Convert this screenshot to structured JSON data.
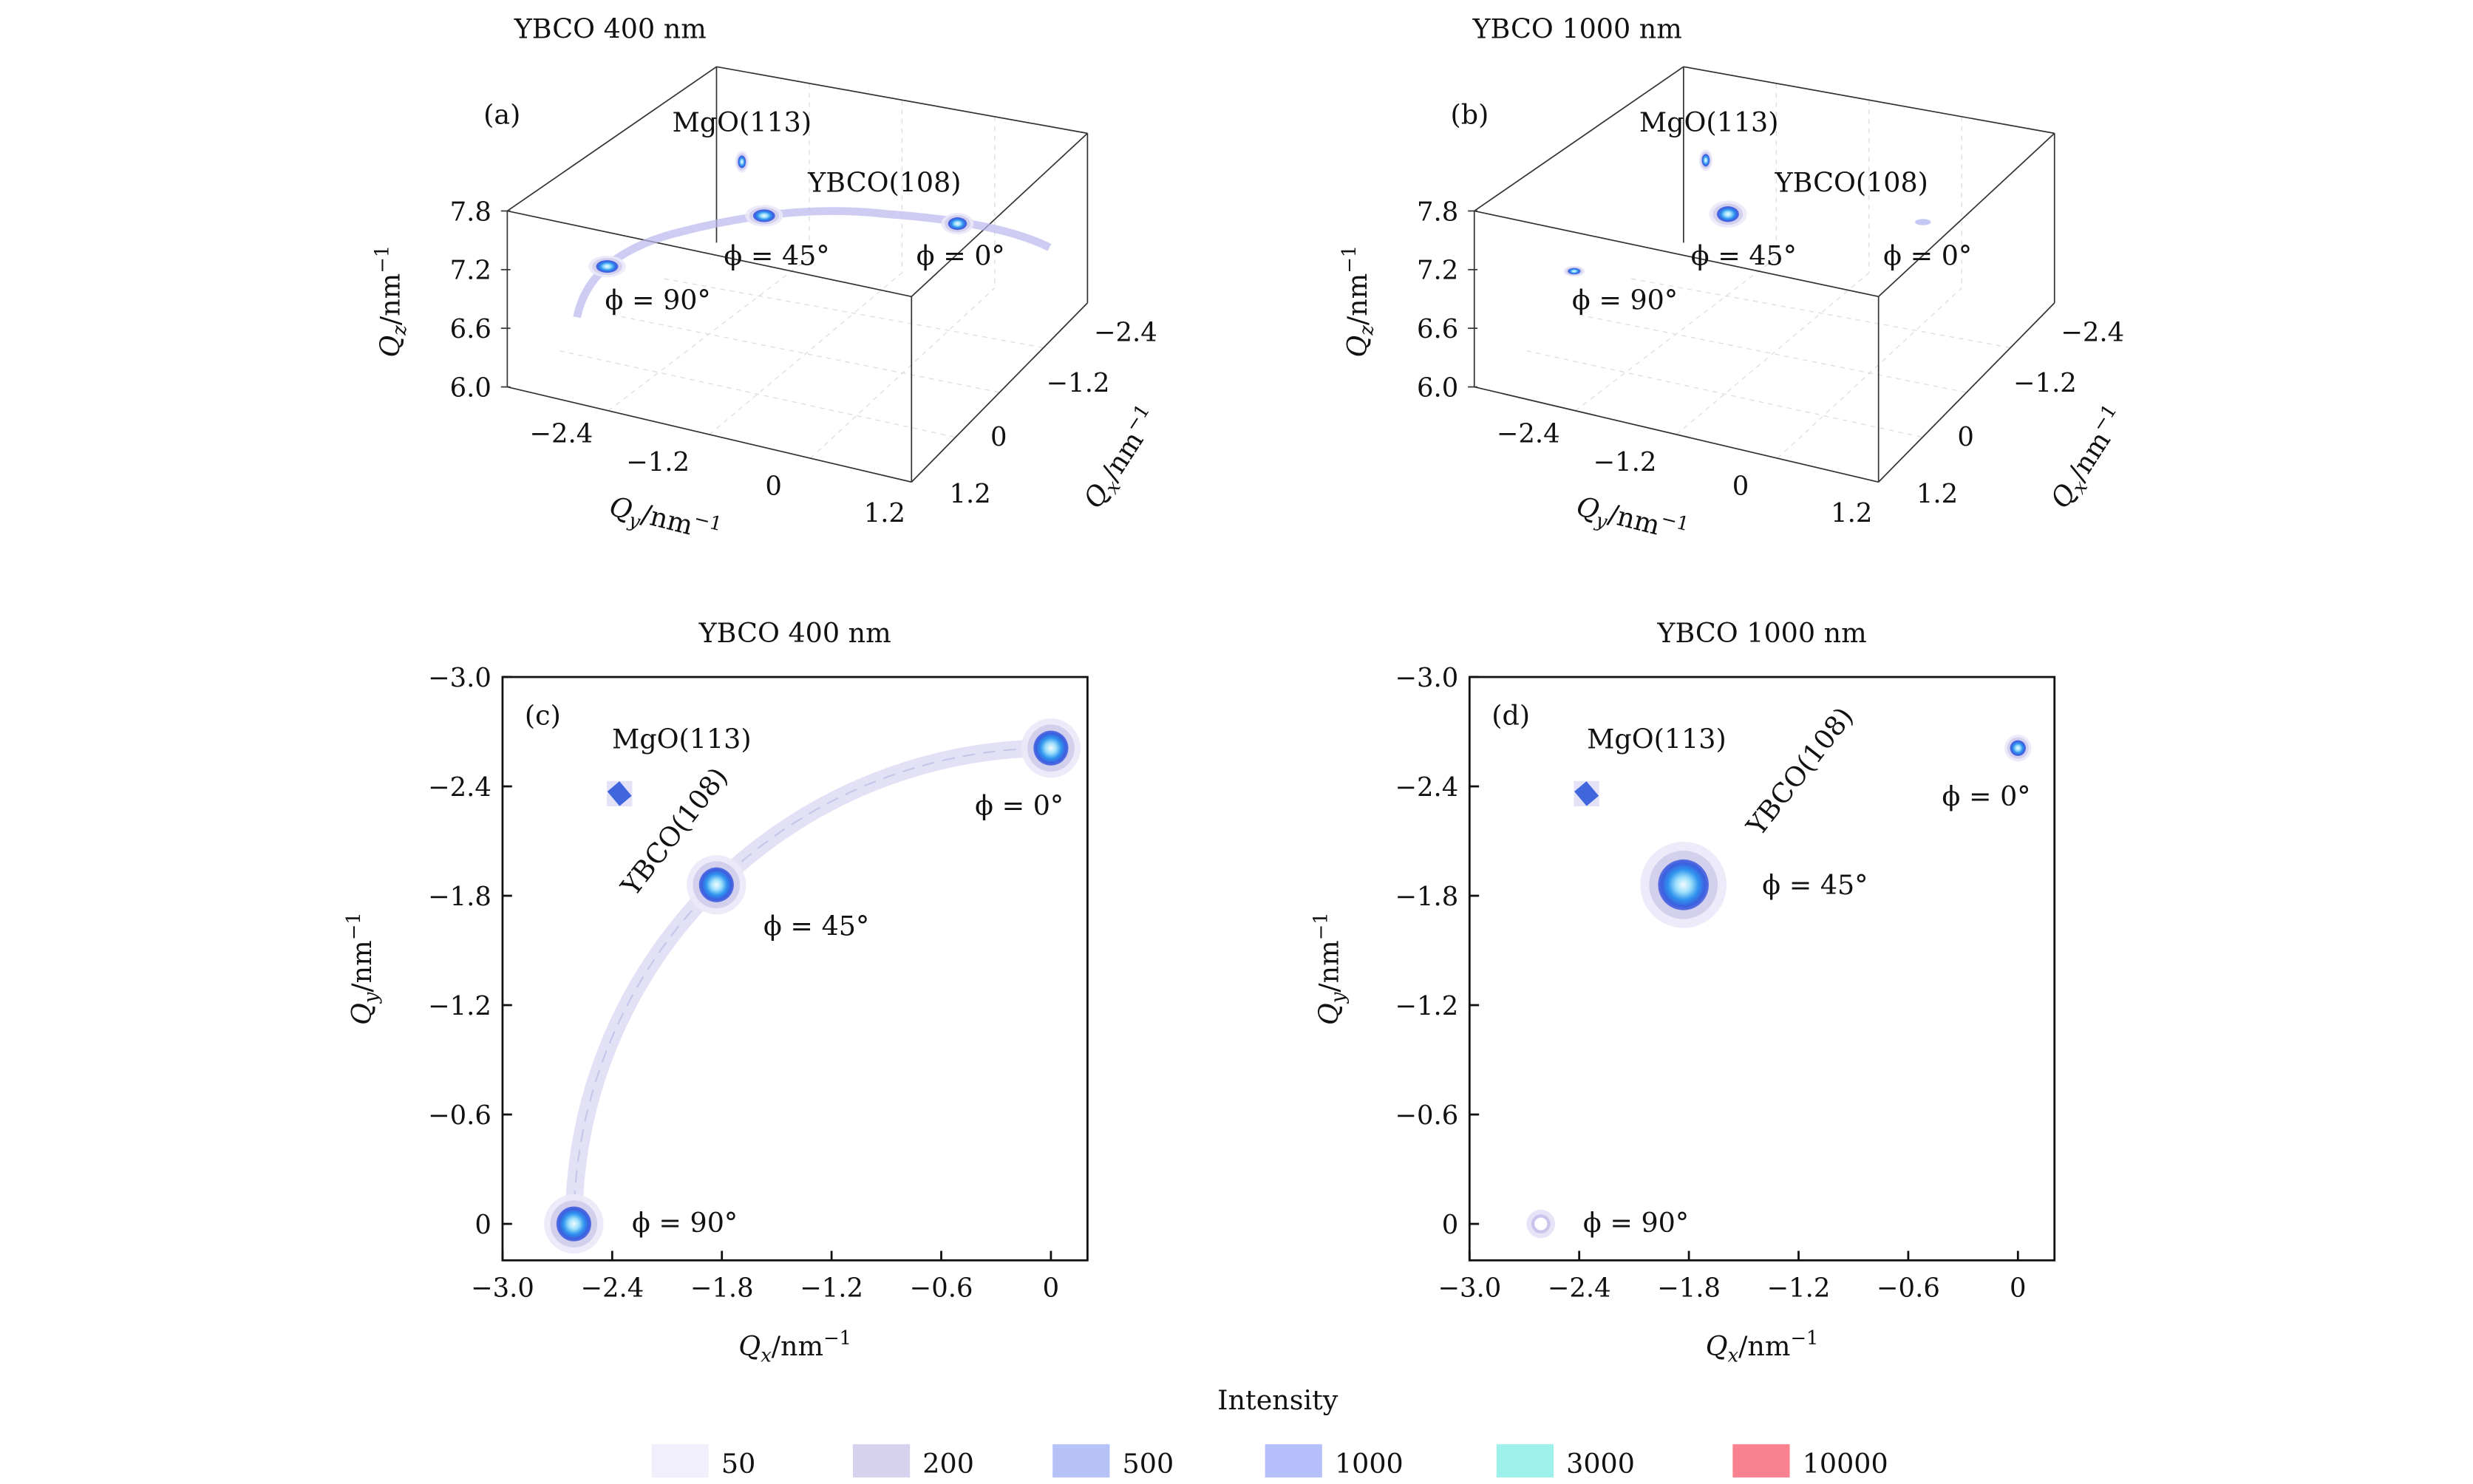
{
  "chart_data": [
    {
      "panel": "(a)",
      "type": "heatmap",
      "title": "YBCO 400 nm",
      "xlabel": {
        "sym": "Q",
        "sub": "y",
        "unit": "/nm",
        "sup": "−1"
      },
      "ylabel": {
        "sym": "Q",
        "sub": "x",
        "unit": "/nm",
        "sup": "−1"
      },
      "zlabel": {
        "sym": "Q",
        "sub": "z",
        "unit": "/nm",
        "sup": "−1"
      },
      "qy_ticks": [
        "−2.4",
        "−1.2",
        "0",
        "1.2"
      ],
      "qx_ticks": [
        "−2.4",
        "−1.2",
        "0",
        "1.2"
      ],
      "qz_ticks": [
        "7.8",
        "7.2",
        "6.6",
        "6.0"
      ],
      "annotations": {
        "mgo": "MgO(113)",
        "ybco": "YBCO(108)",
        "phi0": "ϕ = 0°",
        "phi45": "ϕ = 45°",
        "phi90": "ϕ = 90°"
      },
      "arc_visible": true
    },
    {
      "panel": "(b)",
      "type": "heatmap",
      "title": "YBCO 1000 nm",
      "xlabel": {
        "sym": "Q",
        "sub": "y",
        "unit": "/nm",
        "sup": "−1"
      },
      "ylabel": {
        "sym": "Q",
        "sub": "x",
        "unit": "/nm",
        "sup": "−1"
      },
      "zlabel": {
        "sym": "Q",
        "sub": "z",
        "unit": "/nm",
        "sup": "−1"
      },
      "qy_ticks": [
        "−2.4",
        "−1.2",
        "0",
        "1.2"
      ],
      "qx_ticks": [
        "−2.4",
        "−1.2",
        "0",
        "1.2"
      ],
      "qz_ticks": [
        "7.8",
        "7.2",
        "6.6",
        "6.0"
      ],
      "annotations": {
        "mgo": "MgO(113)",
        "ybco": "YBCO(108)",
        "phi0": "ϕ = 0°",
        "phi45": "ϕ = 45°",
        "phi90": "ϕ = 90°"
      },
      "arc_visible": false
    },
    {
      "panel": "(c)",
      "type": "heatmap",
      "title": "YBCO 400 nm",
      "xlabel": {
        "sym": "Q",
        "sub": "x",
        "unit": "/nm",
        "sup": "−1"
      },
      "ylabel": {
        "sym": "Q",
        "sub": "y",
        "unit": "/nm",
        "sup": "−1"
      },
      "xlim": [
        -3.0,
        0.2
      ],
      "ylim": [
        -3.0,
        0.2
      ],
      "y_inverted": true,
      "xticks": [
        -3.0,
        -2.4,
        -1.8,
        -1.2,
        -0.6,
        0
      ],
      "xtick_labels": [
        "−3.0",
        "−2.4",
        "−1.8",
        "−1.2",
        "−0.6",
        "0"
      ],
      "yticks": [
        -3.0,
        -2.4,
        -1.8,
        -1.2,
        -0.6,
        0
      ],
      "ytick_labels": [
        "−3.0",
        "−2.4",
        "−1.8",
        "−1.2",
        "−0.6",
        "0"
      ],
      "annotations": {
        "mgo": "MgO(113)",
        "ybco": "YBCO(108)",
        "phi0": "ϕ = 0°",
        "phi45": "ϕ = 45°",
        "phi90": "ϕ = 90°"
      },
      "peaks": [
        {
          "name": "phi0",
          "qx": 0.0,
          "qy": -2.61,
          "max_level": 3000
        },
        {
          "name": "phi45",
          "qx": -1.83,
          "qy": -1.86,
          "max_level": 3000
        },
        {
          "name": "phi90",
          "qx": -2.61,
          "qy": 0.0,
          "max_level": 3000
        },
        {
          "name": "mgo",
          "qx": -2.36,
          "qy": -2.36,
          "max_level": 1000
        }
      ],
      "arc": {
        "radius": 2.61,
        "level": 50
      }
    },
    {
      "panel": "(d)",
      "type": "heatmap",
      "title": "YBCO 1000 nm",
      "xlabel": {
        "sym": "Q",
        "sub": "x",
        "unit": "/nm",
        "sup": "−1"
      },
      "ylabel": {
        "sym": "Q",
        "sub": "y",
        "unit": "/nm",
        "sup": "−1"
      },
      "xlim": [
        -3.0,
        0.2
      ],
      "ylim": [
        -3.0,
        0.2
      ],
      "y_inverted": true,
      "xticks": [
        -3.0,
        -2.4,
        -1.8,
        -1.2,
        -0.6,
        0
      ],
      "xtick_labels": [
        "−3.0",
        "−2.4",
        "−1.8",
        "−1.2",
        "−0.6",
        "0"
      ],
      "yticks": [
        -3.0,
        -2.4,
        -1.8,
        -1.2,
        -0.6,
        0
      ],
      "ytick_labels": [
        "−3.0",
        "−2.4",
        "−1.8",
        "−1.2",
        "−0.6",
        "0"
      ],
      "annotations": {
        "mgo": "MgO(113)",
        "ybco": "YBCO(108)",
        "phi0": "ϕ = 0°",
        "phi45": "ϕ = 45°",
        "phi90": "ϕ = 90°"
      },
      "peaks": [
        {
          "name": "phi0",
          "qx": 0.0,
          "qy": -2.61,
          "max_level": 1000
        },
        {
          "name": "phi45",
          "qx": -1.83,
          "qy": -1.86,
          "max_level": 3000
        },
        {
          "name": "phi90",
          "qx": -2.61,
          "qy": 0.0,
          "max_level": 200
        },
        {
          "name": "mgo",
          "qx": -2.36,
          "qy": -2.36,
          "max_level": 1000
        }
      ]
    }
  ],
  "legend": {
    "title": "Intensity",
    "items": [
      {
        "label": "50",
        "color": "#f1effb"
      },
      {
        "label": "200",
        "color": "#d6d2ee"
      },
      {
        "label": "500",
        "color": "#b7c3f8"
      },
      {
        "label": "1000",
        "color": "#b5c0fb"
      },
      {
        "label": "3000",
        "color": "#9ef0ea"
      },
      {
        "label": "10000",
        "color": "#f8828f"
      }
    ]
  }
}
